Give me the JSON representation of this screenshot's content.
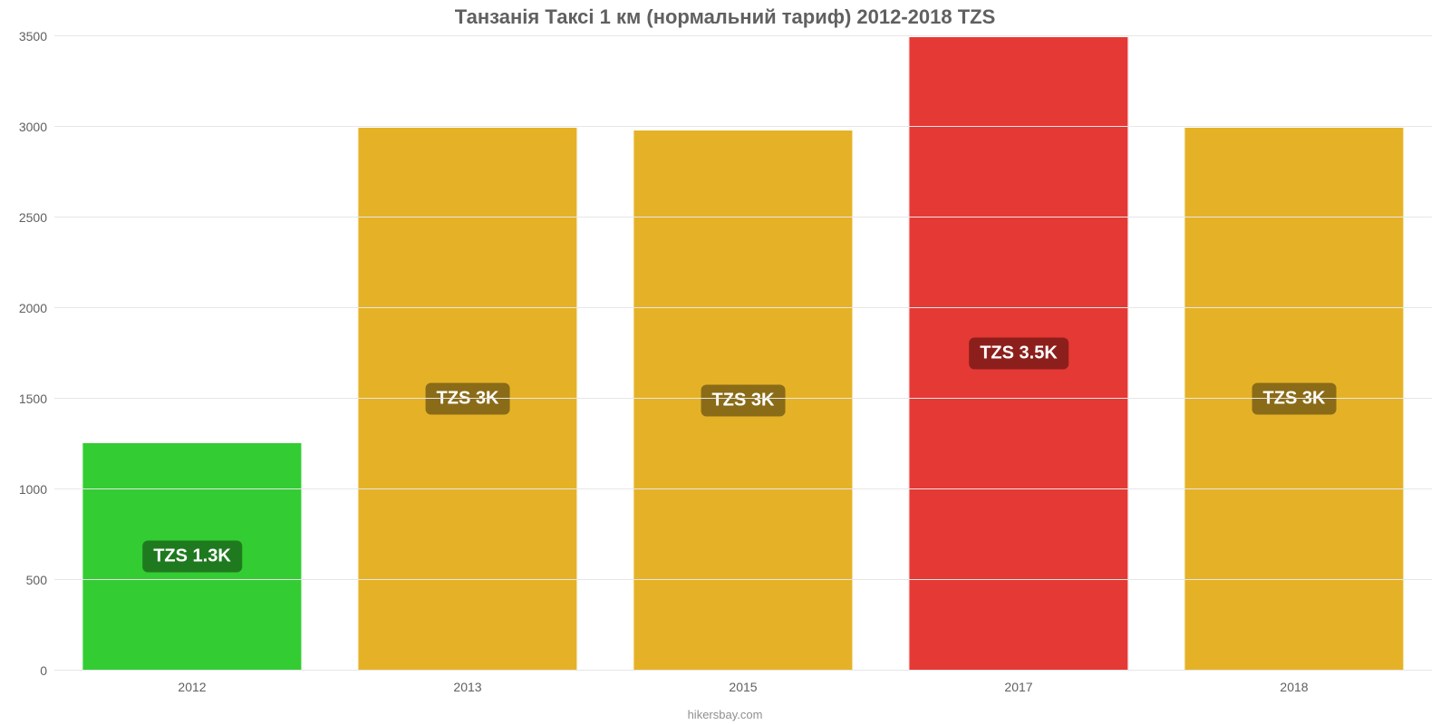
{
  "chart": {
    "type": "bar",
    "title": "Танзанія Таксі 1 км (нормальний тариф) 2012-2018 TZS",
    "title_fontsize": 22,
    "title_color": "#606060",
    "background_color": "#ffffff",
    "grid_color": "#e6e6e6",
    "axis_color": "#b0b0b0",
    "tick_label_color": "#606060",
    "tick_fontsize": 14,
    "y_axis": {
      "min": 0,
      "max": 3500,
      "tick_step": 500,
      "ticks": [
        0,
        500,
        1000,
        1500,
        2000,
        2500,
        3000,
        3500
      ]
    },
    "bar_width_pct": 80,
    "bars": [
      {
        "category": "2012",
        "value": 1260,
        "label": "TZS 1.3K",
        "fill_color": "#33cc33",
        "label_bg": "#1f7a1f",
        "label_color": "#ffffff"
      },
      {
        "category": "2013",
        "value": 3000,
        "label": "TZS 3K",
        "fill_color": "#e5b227",
        "label_bg": "#8a6b17",
        "label_color": "#ffffff"
      },
      {
        "category": "2015",
        "value": 2985,
        "label": "TZS 3K",
        "fill_color": "#e5b227",
        "label_bg": "#8a6b17",
        "label_color": "#ffffff"
      },
      {
        "category": "2017",
        "value": 3500,
        "label": "TZS 3.5K",
        "fill_color": "#e53935",
        "label_bg": "#8c1f1c",
        "label_color": "#ffffff"
      },
      {
        "category": "2018",
        "value": 3000,
        "label": "TZS 3K",
        "fill_color": "#e5b227",
        "label_bg": "#8a6b17",
        "label_color": "#ffffff"
      }
    ],
    "bar_label_fontsize": 20,
    "footer": "hikersbay.com",
    "footer_color": "#909090",
    "footer_fontsize": 13
  }
}
